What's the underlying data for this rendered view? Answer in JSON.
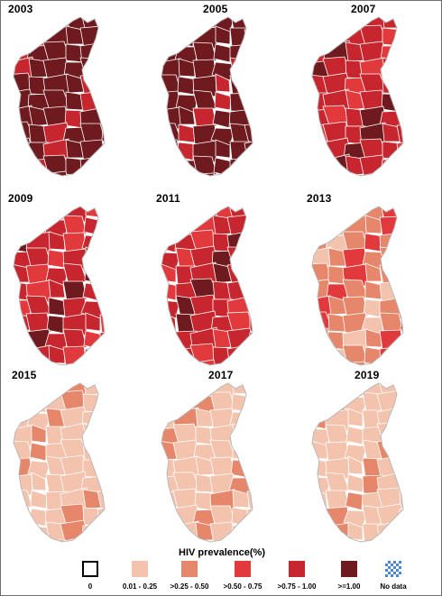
{
  "legend": {
    "title": "HIV prevalence(%)",
    "classes": [
      {
        "label": "0",
        "color": "#ffffff"
      },
      {
        "label": "0.01 - 0.25",
        "color": "#f3c3ad"
      },
      {
        "label": ">0.25 - 0.50",
        "color": "#e6866a"
      },
      {
        "label": ">0.50 - 0.75",
        "color": "#e23a3c"
      },
      {
        "label": ">0.75 - 1.00",
        "color": "#c7262e"
      },
      {
        "label": ">=1.00",
        "color": "#6e1a1e"
      },
      {
        "label": "No data",
        "color": "#4a86d8"
      }
    ]
  },
  "maps": [
    {
      "year": "2003",
      "dominant_class": 5
    },
    {
      "year": "2005",
      "dominant_class": 5
    },
    {
      "year": "2007",
      "dominant_class": 4
    },
    {
      "year": "2009",
      "dominant_class": 4
    },
    {
      "year": "2011",
      "dominant_class": 4
    },
    {
      "year": "2013",
      "dominant_class": 2
    },
    {
      "year": "2015",
      "dominant_class": 1
    },
    {
      "year": "2017",
      "dominant_class": 1
    },
    {
      "year": "2019",
      "dominant_class": 1
    }
  ]
}
